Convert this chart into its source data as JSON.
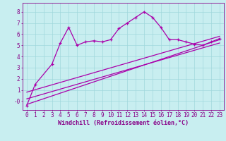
{
  "xlabel": "Windchill (Refroidissement éolien,°C)",
  "bg_color": "#c8eef0",
  "grid_color": "#a0d8dc",
  "line_color": "#aa00aa",
  "x_main": [
    0,
    1,
    3,
    4,
    5,
    6,
    7,
    8,
    9,
    10,
    11,
    12,
    13,
    14,
    15,
    16,
    17,
    18,
    19,
    20,
    21,
    22,
    23
  ],
  "y_main": [
    -0.4,
    1.5,
    3.3,
    5.2,
    6.6,
    5.0,
    5.3,
    5.4,
    5.3,
    5.5,
    6.5,
    7.0,
    7.5,
    8.0,
    7.5,
    6.6,
    5.5,
    5.5,
    5.3,
    5.1,
    5.0,
    5.3,
    5.6
  ],
  "line1_x": [
    0,
    23
  ],
  "line1_y": [
    -0.3,
    5.5
  ],
  "line2_x": [
    0,
    23
  ],
  "line2_y": [
    0.2,
    5.2
  ],
  "line3_x": [
    0,
    23
  ],
  "line3_y": [
    0.8,
    5.8
  ],
  "ylim": [
    -0.8,
    8.8
  ],
  "xlim": [
    -0.5,
    23.5
  ],
  "yticks": [
    0,
    1,
    2,
    3,
    4,
    5,
    6,
    7,
    8
  ],
  "ytick_labels": [
    "-0",
    "1",
    "2",
    "3",
    "4",
    "5",
    "6",
    "7",
    "8"
  ],
  "xticks": [
    0,
    1,
    2,
    3,
    4,
    5,
    6,
    7,
    8,
    9,
    10,
    11,
    12,
    13,
    14,
    15,
    16,
    17,
    18,
    19,
    20,
    21,
    22,
    23
  ],
  "tick_color": "#880088",
  "label_fontsize": 5.5,
  "xlabel_fontsize": 6.0
}
